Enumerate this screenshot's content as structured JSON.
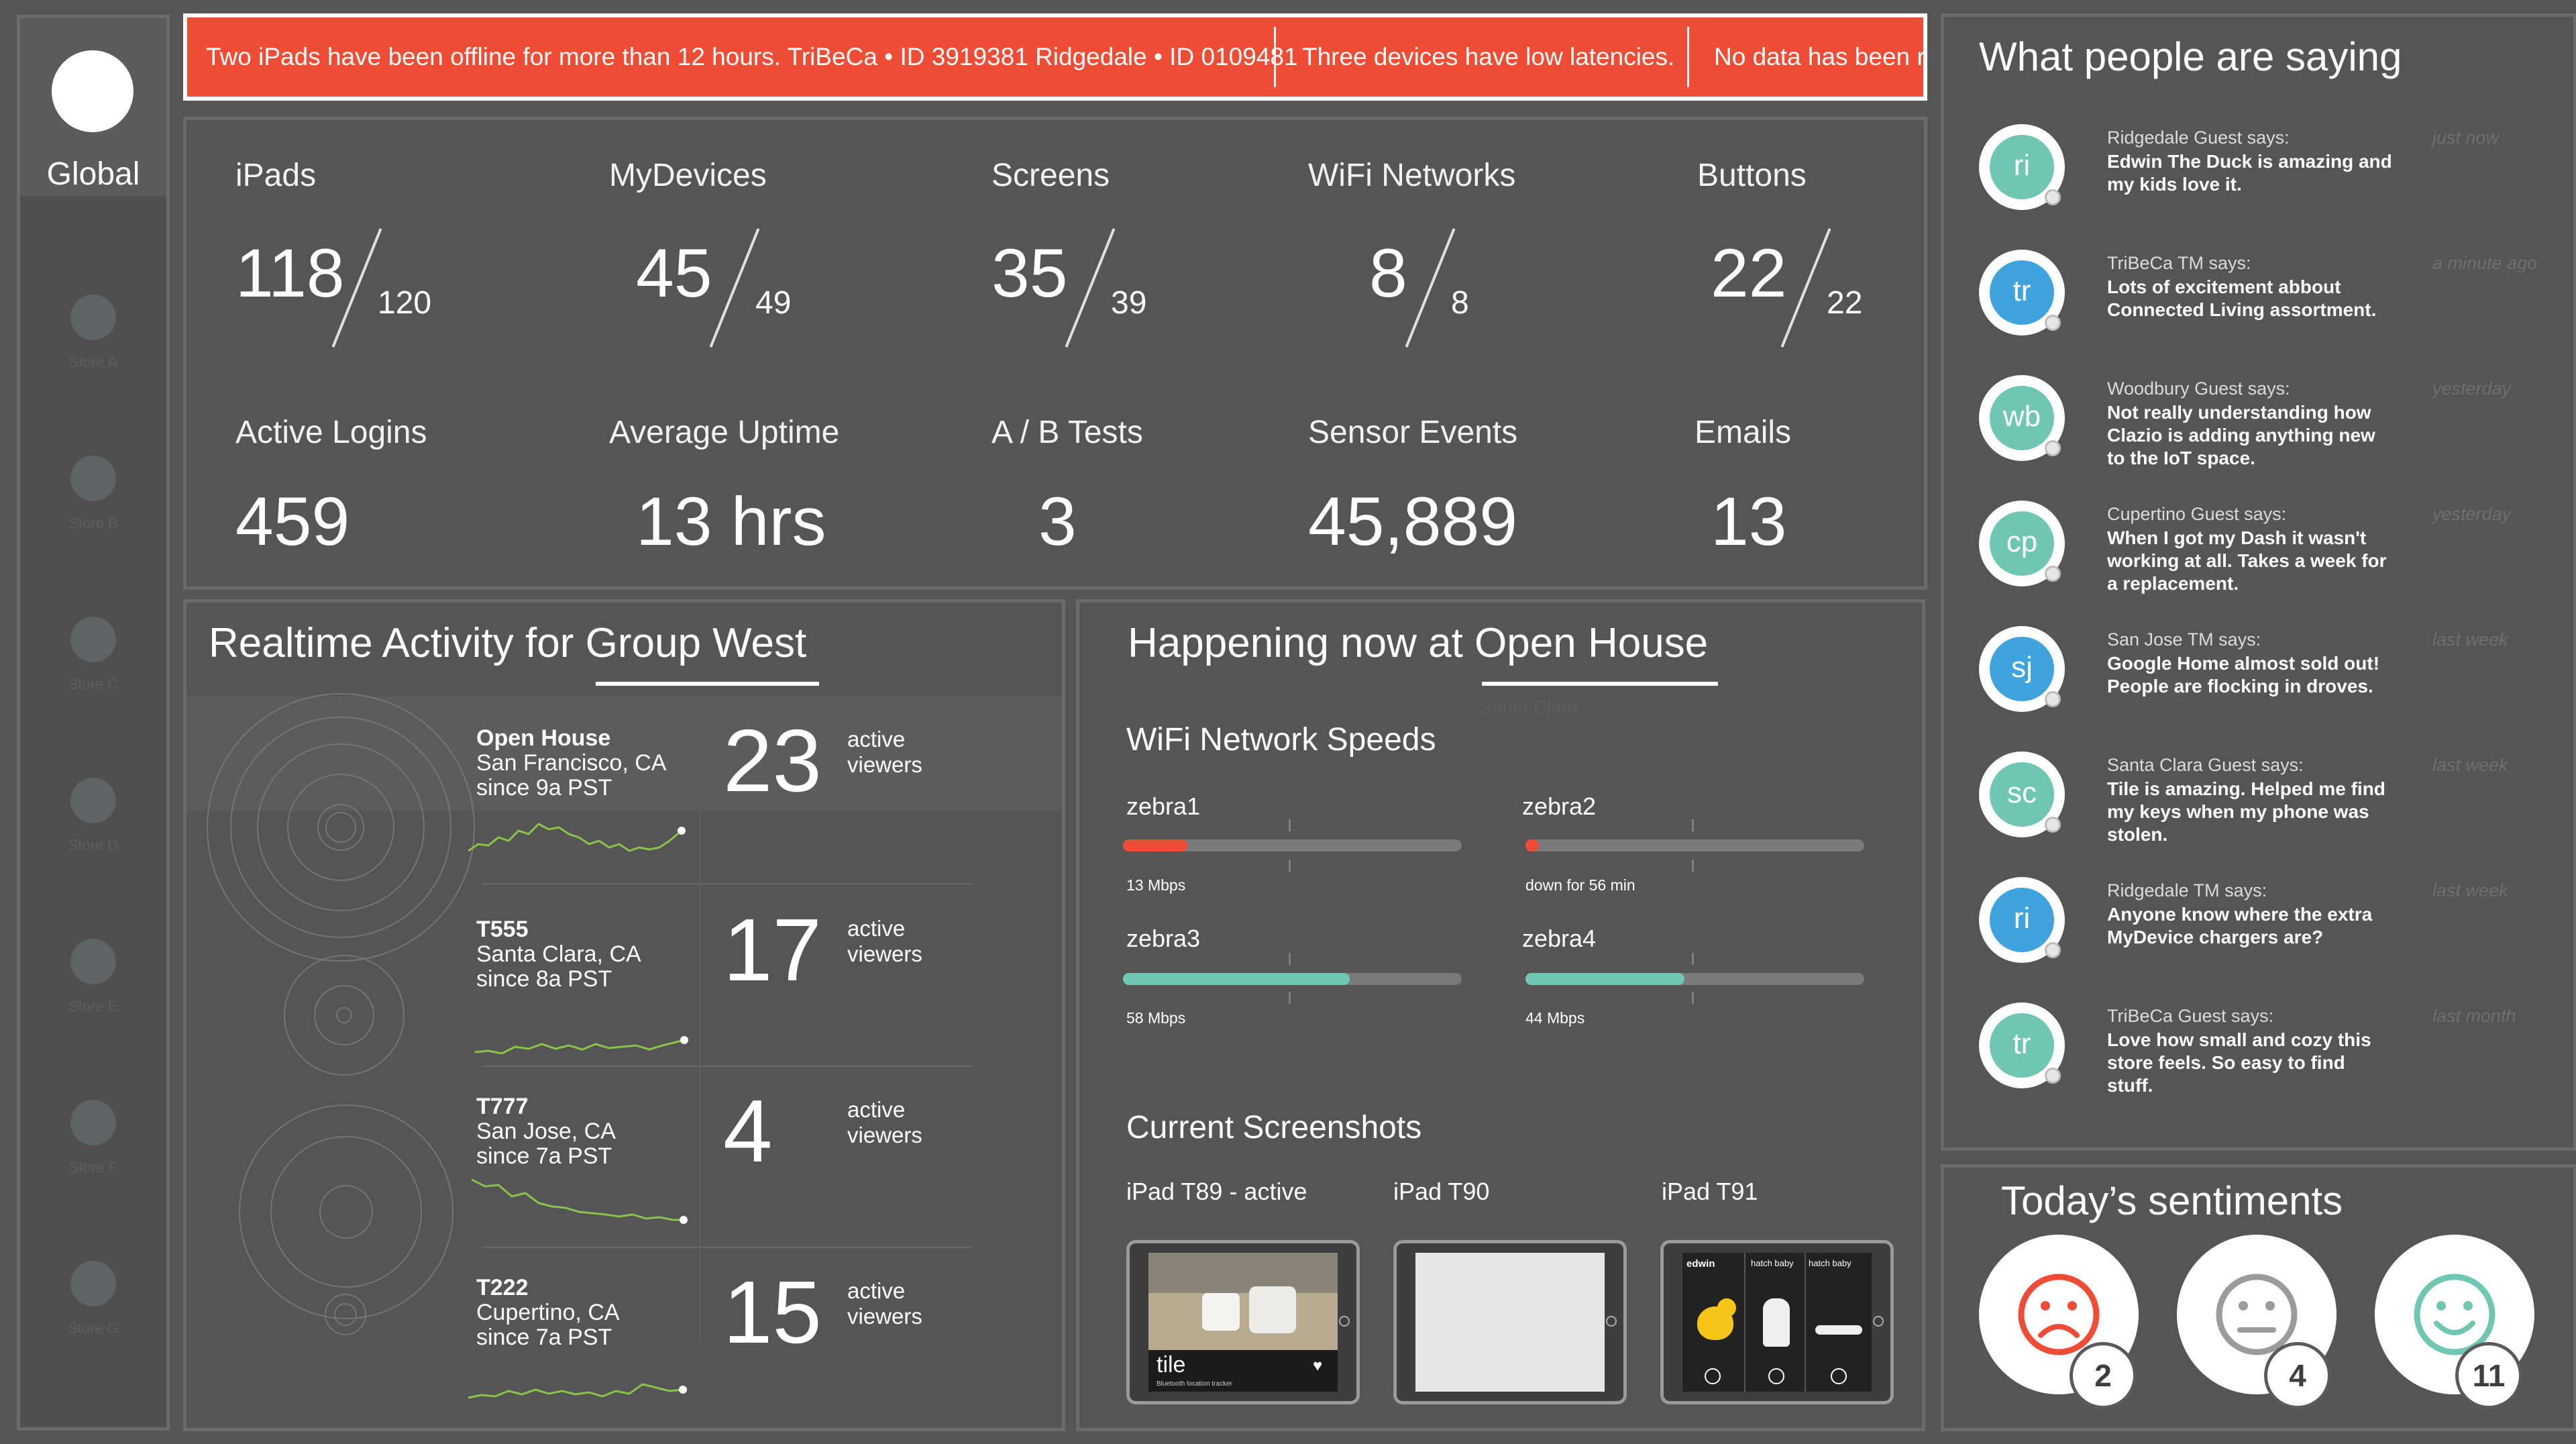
{
  "sidebar": {
    "global_label": "Global",
    "stores": [
      "Store A",
      "Store B",
      "Store C",
      "Store D",
      "Store E",
      "Store F",
      "Store G"
    ]
  },
  "alerts": [
    "Two iPads have been offline for more than 12 hours. TriBeCa • ID 3919381 Ridgedale • ID 0109481",
    "Three devices have low latencies.",
    "No data has been re"
  ],
  "stats": {
    "ipads": {
      "label": "iPads",
      "value": "118",
      "total": "120"
    },
    "mydevices": {
      "label": "MyDevices",
      "value": "45",
      "total": "49"
    },
    "screens": {
      "label": "Screens",
      "value": "35",
      "total": "39"
    },
    "wifi": {
      "label": "WiFi Networks",
      "value": "8",
      "total": "8"
    },
    "buttons": {
      "label": "Buttons",
      "value": "22",
      "total": "22"
    },
    "logins": {
      "label": "Active Logins",
      "value": "459"
    },
    "uptime": {
      "label": "Average Uptime",
      "value": "13 hrs"
    },
    "abtests": {
      "label": "A / B Tests",
      "value": "3"
    },
    "sensor": {
      "label": "Sensor Events",
      "value": "45,889"
    },
    "emails": {
      "label": "Emails",
      "value": "13"
    }
  },
  "realtime": {
    "title_prefix": "Realtime Activity for ",
    "title_group": "Group West",
    "viewers_label": "active\nviewers",
    "rows": [
      {
        "name": "Open House",
        "location": "San Francisco, CA",
        "since": "since 9a PST",
        "count": "23"
      },
      {
        "name": "T555",
        "location": "Santa Clara, CA",
        "since": "since 8a PST",
        "count": "17"
      },
      {
        "name": "T777",
        "location": "San Jose, CA",
        "since": "since 7a PST",
        "count": "4"
      },
      {
        "name": "T222",
        "location": "Cupertino, CA",
        "since": "since 7a PST",
        "count": "15"
      }
    ]
  },
  "happening": {
    "title_prefix": "Happening now at ",
    "title_store": "Open House",
    "ghost_label": "Santa Clara",
    "wifi_title": "WiFi Network Speeds",
    "networks": [
      {
        "name": "zebra1",
        "note": "13 Mbps",
        "fill": 0.19,
        "color": "#ef4c36"
      },
      {
        "name": "zebra2",
        "note": "down for 56 min",
        "fill": 0.04,
        "color": "#ef4c36"
      },
      {
        "name": "zebra3",
        "note": "58 Mbps",
        "fill": 0.67,
        "color": "#6fc7b3"
      },
      {
        "name": "zebra4",
        "note": "44 Mbps",
        "fill": 0.47,
        "color": "#6fc7b3"
      }
    ],
    "screens_title": "Current Screenshots",
    "screenshots": [
      {
        "label": "iPad T89 - active",
        "caption": "tile",
        "subcaption": "Bluetooth location tracker"
      },
      {
        "label": "iPad T90"
      },
      {
        "label": "iPad T91",
        "brand": "edwin",
        "product": "hatch baby"
      }
    ]
  },
  "comments": {
    "title": "What people are saying",
    "items": [
      {
        "initials": "ri",
        "color": "#6fc7b3",
        "who": "Ridgedale Guest says:",
        "time": "just now",
        "text": "Edwin The Duck is amazing and my kids love it."
      },
      {
        "initials": "tr",
        "color": "#3fa3dd",
        "who": "TriBeCa TM says:",
        "time": "a minute ago",
        "text": "Lots of excitement abbout Connected Living assortment."
      },
      {
        "initials": "wb",
        "color": "#6fc7b3",
        "who": "Woodbury Guest says:",
        "time": "yesterday",
        "text": "Not really understanding how Clazio is adding anything new to the IoT space."
      },
      {
        "initials": "cp",
        "color": "#6fc7b3",
        "who": "Cupertino Guest says:",
        "time": "yesterday",
        "text": "When I got my Dash it wasn't working at all. Takes a week for a replacement."
      },
      {
        "initials": "sj",
        "color": "#3fa3dd",
        "who": "San Jose TM says:",
        "time": "last week",
        "text": "Google Home almost sold out! People are flocking in droves."
      },
      {
        "initials": "sc",
        "color": "#6fc7b3",
        "who": "Santa Clara Guest says:",
        "time": "last week",
        "text": "Tile is amazing. Helped me find my keys when my phone was stolen."
      },
      {
        "initials": "ri",
        "color": "#3fa3dd",
        "who": "Ridgedale TM says:",
        "time": "last week",
        "text": "Anyone know where the extra MyDevice chargers are?"
      },
      {
        "initials": "tr",
        "color": "#6fc7b3",
        "who": "TriBeCa Guest says:",
        "time": "last month",
        "text": "Love how small and cozy this store feels. So easy to find stuff."
      }
    ]
  },
  "sentiments": {
    "title": "Today’s sentiments",
    "items": [
      {
        "mood": "sad-face-icon",
        "color": "#ef4c36",
        "count": "2"
      },
      {
        "mood": "neutral-face-icon",
        "color": "#9b9b9b",
        "count": "4"
      },
      {
        "mood": "happy-face-icon",
        "color": "#6fc7b3",
        "count": "11"
      }
    ]
  }
}
